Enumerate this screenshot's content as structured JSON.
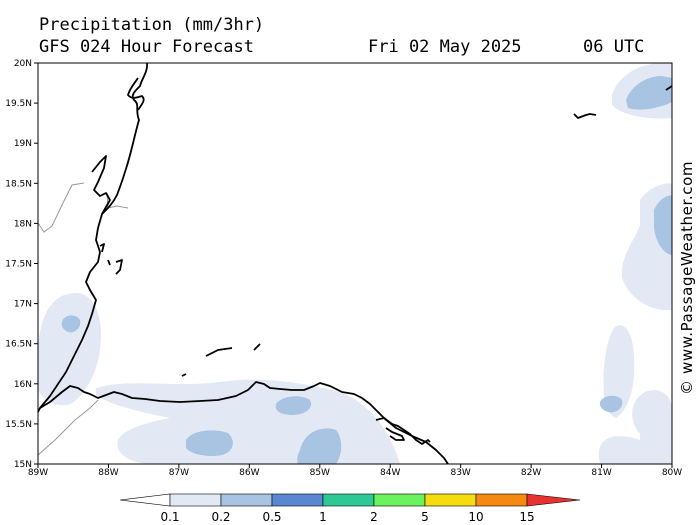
{
  "header": {
    "title": "Precipitation (mm/3hr)",
    "subtitle": "GFS 024 Hour Forecast",
    "date": "Fri 02 May 2025",
    "time": "06 UTC"
  },
  "map": {
    "lat_labels": [
      "20N",
      "19.5N",
      "19N",
      "18.5N",
      "18N",
      "17.5N",
      "17N",
      "16.5N",
      "16N",
      "15.5N",
      "15N"
    ],
    "lon_labels": [
      "89W",
      "88W",
      "87W",
      "86W",
      "85W",
      "84W",
      "83W",
      "82W",
      "81W",
      "80W"
    ],
    "lat_range": [
      15,
      20
    ],
    "lon_range": [
      -89,
      -80
    ],
    "precip_colors": {
      "light": "#e2e9f5",
      "medium": "#a9c3e3",
      "land_border": "#999999",
      "coastline": "#000000"
    }
  },
  "colorbar": {
    "labels": [
      "0.1",
      "0.2",
      "0.5",
      "1",
      "2",
      "5",
      "10",
      "15"
    ],
    "colors": [
      "#ffffff",
      "#e2e9f5",
      "#a9c3e3",
      "#5b87d2",
      "#2fc796",
      "#6bf25c",
      "#f5dc10",
      "#f58a12",
      "#e83232"
    ]
  },
  "credit": "© www.PassageWeather.com"
}
